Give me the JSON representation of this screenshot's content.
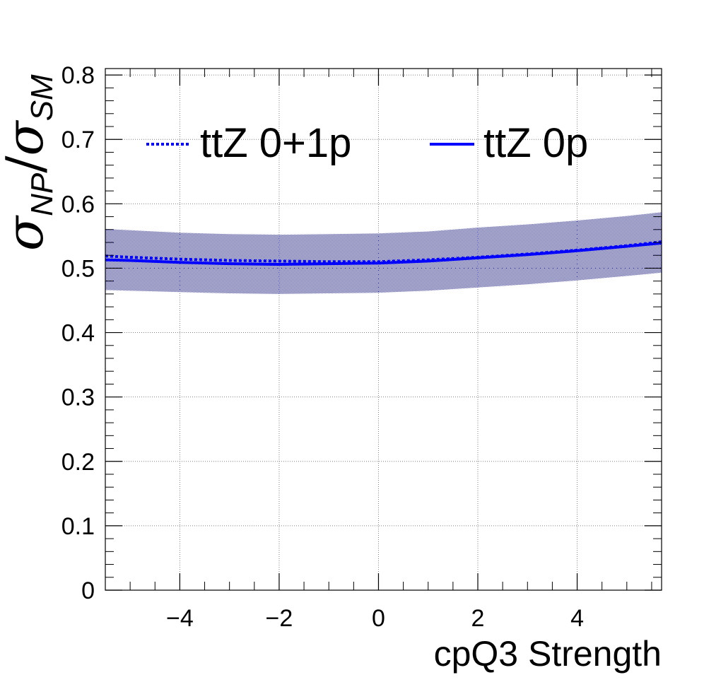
{
  "chart_data": {
    "type": "line",
    "title": "",
    "xlabel": "cpQ3 Strength",
    "ylabel": {
      "numerator_symbol": "σ",
      "numerator_subscript": "NP",
      "separator": "/",
      "denominator_symbol": "σ",
      "denominator_subscript": "SM"
    },
    "xlim": [
      -5.5,
      5.7
    ],
    "ylim": [
      0,
      0.81
    ],
    "x_ticks": [
      -4,
      -2,
      0,
      2,
      4
    ],
    "x_tick_labels": [
      "−4",
      "−2",
      "0",
      "2",
      "4"
    ],
    "y_ticks": [
      0,
      0.1,
      0.2,
      0.3,
      0.4,
      0.5,
      0.6,
      0.7,
      0.8
    ],
    "y_tick_labels": [
      "0",
      "0.1",
      "0.2",
      "0.3",
      "0.4",
      "0.5",
      "0.6",
      "0.7",
      "0.8"
    ],
    "grid": true,
    "legend_position": "top",
    "colors": {
      "series": "#0000ff",
      "band": "#4040d0",
      "frame": "#000000",
      "grid": "#808080"
    },
    "x": [
      -5.5,
      -5,
      -4,
      -3,
      -2,
      -1,
      0,
      1,
      2,
      3,
      4,
      5,
      5.7
    ],
    "series": [
      {
        "name": "ttZ 0+1p",
        "style": "dotted",
        "values": [
          0.519,
          0.517,
          0.514,
          0.512,
          0.511,
          0.51,
          0.51,
          0.513,
          0.517,
          0.522,
          0.528,
          0.535,
          0.541
        ]
      },
      {
        "name": "ttZ 0p",
        "style": "solid",
        "values": [
          0.513,
          0.512,
          0.509,
          0.507,
          0.506,
          0.507,
          0.508,
          0.511,
          0.516,
          0.521,
          0.527,
          0.534,
          0.539
        ],
        "band_low": [
          0.466,
          0.465,
          0.463,
          0.461,
          0.46,
          0.461,
          0.462,
          0.465,
          0.47,
          0.475,
          0.481,
          0.488,
          0.493
        ],
        "band_high": [
          0.561,
          0.559,
          0.555,
          0.553,
          0.552,
          0.553,
          0.554,
          0.557,
          0.563,
          0.568,
          0.574,
          0.581,
          0.587
        ]
      }
    ]
  }
}
